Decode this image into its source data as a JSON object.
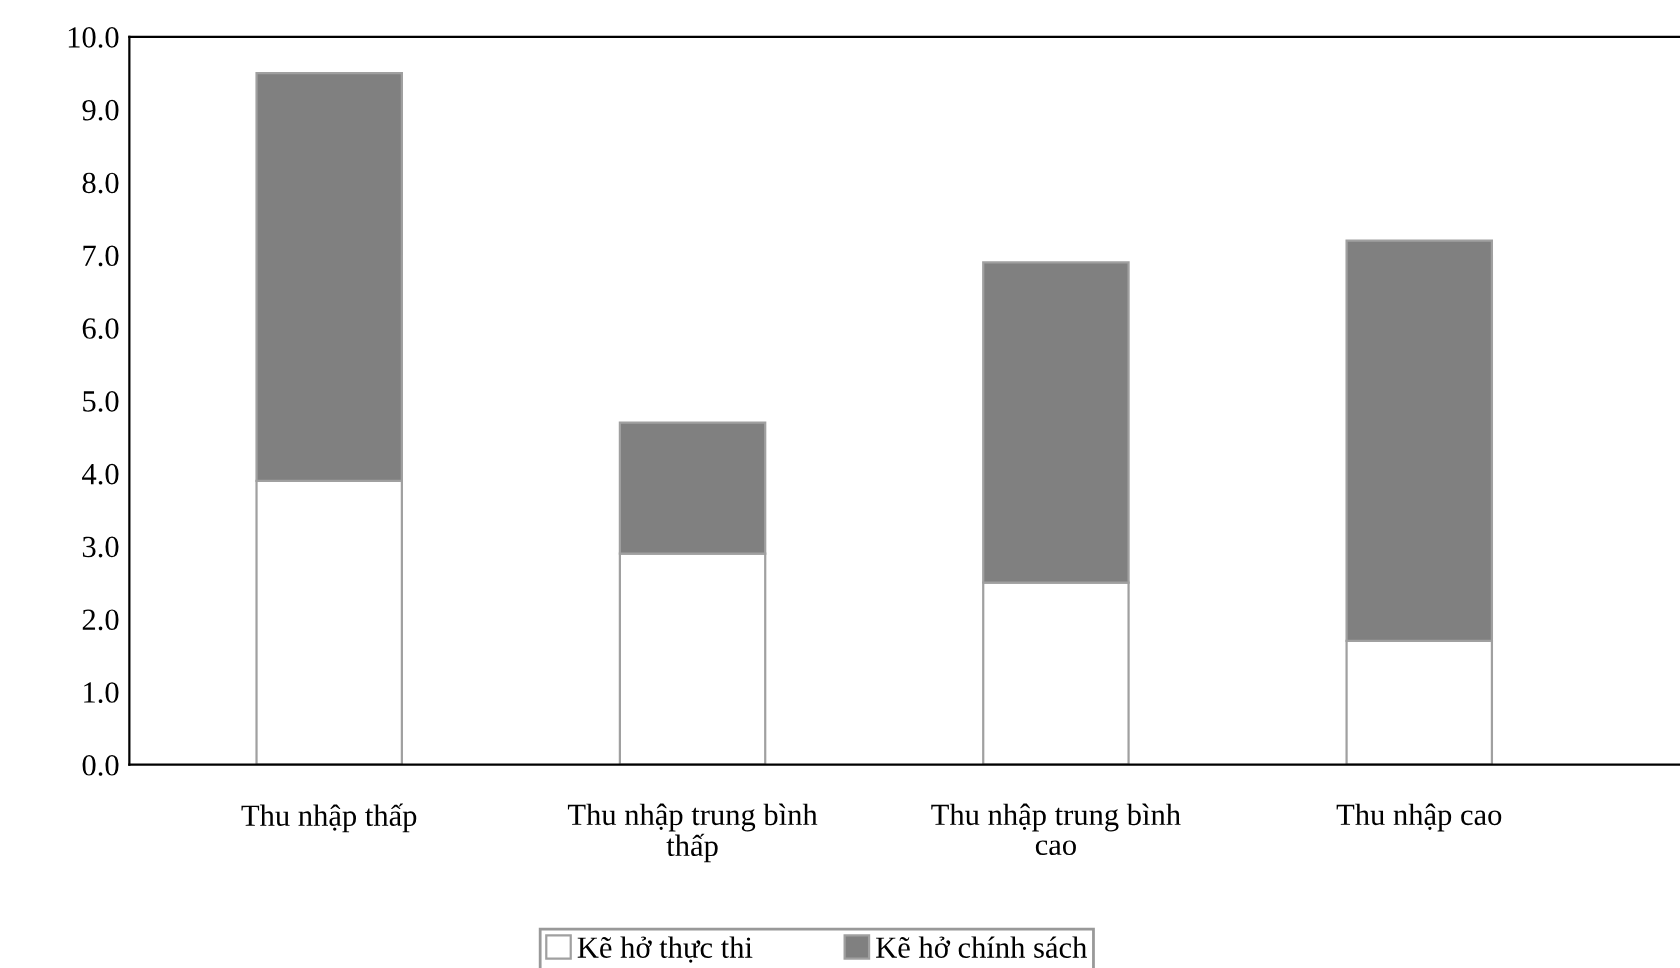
{
  "chart_data": {
    "type": "bar",
    "stacked": true,
    "categories": [
      "Thu nhập thấp",
      "Thu nhập trung bình thấp",
      "Thu nhập trung bình cao",
      "Thu nhập cao"
    ],
    "series": [
      {
        "name": "Kẽ hở thực thi",
        "color": "#ffffff",
        "values": [
          3.9,
          2.9,
          2.5,
          1.7
        ]
      },
      {
        "name": "Kẽ hở chính sách",
        "color": "#808080",
        "values": [
          5.6,
          1.8,
          4.4,
          5.5
        ]
      }
    ],
    "ylim": [
      0,
      10
    ],
    "yticks": [
      {
        "value": 0,
        "label": "0.0"
      },
      {
        "value": 1,
        "label": "1.0"
      },
      {
        "value": 2,
        "label": "2.0"
      },
      {
        "value": 3,
        "label": "3.0"
      },
      {
        "value": 4,
        "label": "4.0"
      },
      {
        "value": 5,
        "label": "5.0"
      },
      {
        "value": 6,
        "label": "6.0"
      },
      {
        "value": 7,
        "label": "7.0"
      },
      {
        "value": 8,
        "label": "8.0"
      },
      {
        "value": 9,
        "label": "9.0"
      },
      {
        "value": 10,
        "label": "10.0"
      }
    ],
    "grid": false,
    "legend": "bottom"
  }
}
